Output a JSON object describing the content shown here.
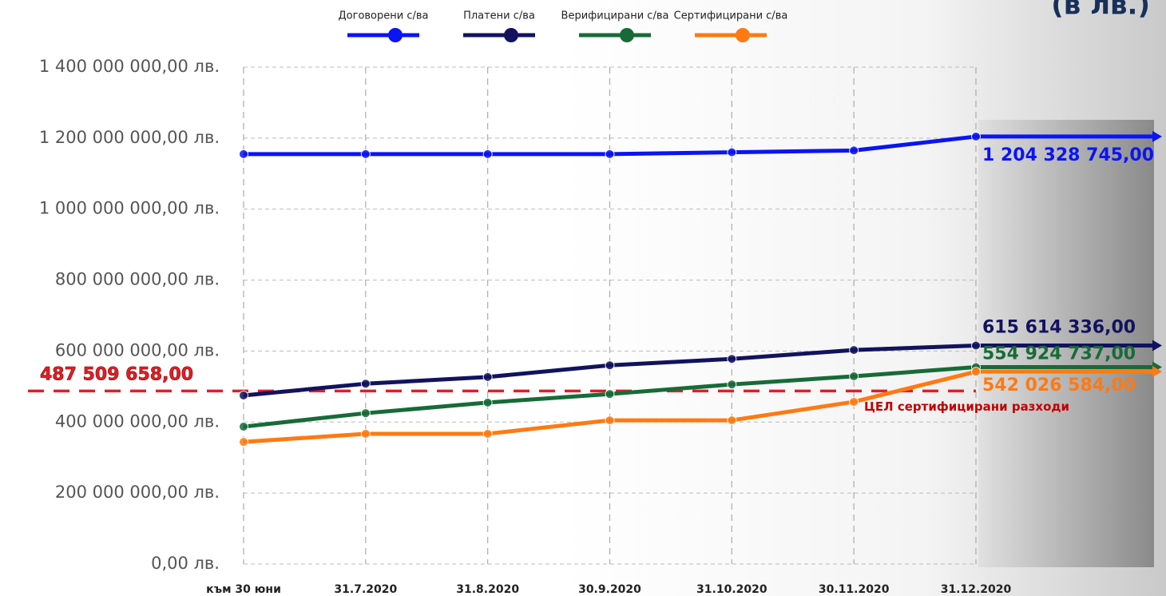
{
  "chart_data": {
    "type": "line",
    "title": "(в лв.)",
    "categories": [
      "към 30 юни",
      "31.7.2020",
      "31.8.2020",
      "30.9.2020",
      "31.10.2020",
      "30.11.2020",
      "31.12.2020"
    ],
    "series": [
      {
        "name": "Договорени с/ва",
        "color": "#0a14f5",
        "values": [
          1155000000,
          1155000000,
          1155000000,
          1155000000,
          1160000000,
          1165000000,
          1204328745
        ],
        "value_labels": [
          null,
          null,
          null,
          null,
          null,
          null,
          "1 204 328 745,00"
        ]
      },
      {
        "name": "Платени с/ва",
        "color": "#12125e",
        "values": [
          475000000,
          508000000,
          527000000,
          560000000,
          578000000,
          603000000,
          615614336
        ],
        "value_labels": [
          null,
          null,
          null,
          null,
          null,
          null,
          "615 614 336,00"
        ]
      },
      {
        "name": "Верифицирани с/ва",
        "color": "#176b38",
        "values": [
          387000000,
          425000000,
          455000000,
          479000000,
          506000000,
          529000000,
          554924737
        ],
        "value_labels": [
          null,
          null,
          null,
          null,
          null,
          null,
          "554 924 737,00"
        ]
      },
      {
        "name": "Сертифицирани с/ва",
        "color": "#ff7a12",
        "values": [
          344000000,
          367000000,
          367000000,
          405000000,
          405000000,
          457000000,
          542026584
        ],
        "value_labels": [
          null,
          null,
          null,
          null,
          null,
          null,
          "542 026 584,00"
        ]
      }
    ],
    "target": {
      "value": 487509658,
      "label": "487 509 658,00",
      "name": "ЦЕЛ сертифицирани разходи",
      "color": "#e31e24"
    },
    "ylim": [
      0,
      1400000000
    ],
    "yticks": [
      {
        "value": 0,
        "label": "0,00 лв."
      },
      {
        "value": 200000000,
        "label": "200 000 000,00 лв."
      },
      {
        "value": 400000000,
        "label": "400 000 000,00 лв."
      },
      {
        "value": 600000000,
        "label": "600 000 000,00 лв."
      },
      {
        "value": 800000000,
        "label": "800 000 000,00 лв."
      },
      {
        "value": 1000000000,
        "label": "1 000 000 000,00 лв."
      },
      {
        "value": 1200000000,
        "label": "1 200 000 000,00 лв."
      },
      {
        "value": 1400000000,
        "label": "1 400 000 000,00 лв."
      }
    ],
    "grid": true
  }
}
